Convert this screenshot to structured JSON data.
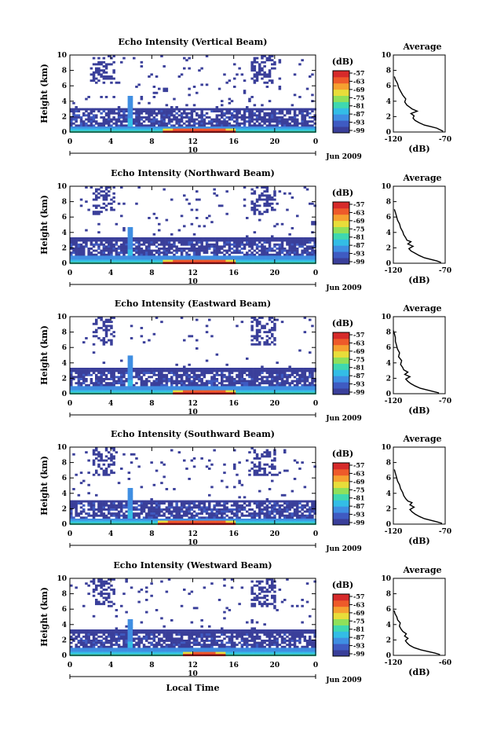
{
  "colors": {
    "cmap": [
      "#3a3f9a",
      "#3f5bc2",
      "#3f8ee2",
      "#33bde6",
      "#3fd8b0",
      "#8fe05a",
      "#e8dd3a",
      "#f6a030",
      "#ee5a2a",
      "#d62a2a"
    ]
  },
  "x_label": "Local Time",
  "chart_data": [
    {
      "type": "heatmap",
      "title": "Echo Intensity (Vertical Beam)",
      "ylabel": "Height (km)",
      "colorbar_label": "(dB)",
      "colorbar_ticks": [
        "-57",
        "-63",
        "-69",
        "-75",
        "-81",
        "-87",
        "-93",
        "-99"
      ],
      "x_ticks": [
        "0",
        "4",
        "8",
        "12",
        "16",
        "20",
        "0"
      ],
      "date_label": "10",
      "date_suffix": "Jun 2009",
      "xlim": [
        0,
        24
      ],
      "ylim": [
        0,
        10
      ],
      "y_ticks": [
        "0",
        "2",
        "4",
        "6",
        "8",
        "10"
      ],
      "clim": [
        -99,
        -57
      ],
      "layers": {
        "floor": 0.9,
        "mid_top": 3.3,
        "noise_density": 0.25,
        "spike_height": 4.8,
        "hot_max": 0.55,
        "hot_start": 9,
        "hot_end": 16
      },
      "average": {
        "title": "Average",
        "xlabel": "(dB)",
        "x_ticks": [
          "-120",
          "-70"
        ],
        "xlim": [
          -120,
          -70
        ],
        "y_ticks": [
          "0",
          "2",
          "4",
          "6",
          "8",
          "10"
        ],
        "height": [
          0.1,
          0.3,
          0.5,
          0.7,
          0.9,
          1.2,
          1.5,
          1.8,
          2.1,
          2.4,
          2.7,
          3.0,
          3.2,
          3.5,
          3.9,
          4.3,
          4.8,
          5.3,
          5.8,
          6.3,
          6.8,
          7.2
        ],
        "values": [
          -72,
          -75,
          -78,
          -84,
          -90,
          -95,
          -99,
          -101,
          -100,
          -103,
          -97,
          -102,
          -104,
          -107,
          -109,
          -108,
          -111,
          -113,
          -115,
          -116,
          -118,
          -119
        ]
      }
    },
    {
      "type": "heatmap",
      "title": "Echo Intensity (Northward Beam)",
      "ylabel": "Height (km)",
      "colorbar_label": "(dB)",
      "colorbar_ticks": [
        "-57",
        "-63",
        "-69",
        "-75",
        "-81",
        "-87",
        "-93",
        "-99"
      ],
      "x_ticks": [
        "0",
        "4",
        "8",
        "12",
        "16",
        "20",
        "0"
      ],
      "date_label": "10",
      "date_suffix": "Jun 2009",
      "xlim": [
        0,
        24
      ],
      "ylim": [
        0,
        10
      ],
      "y_ticks": [
        "0",
        "2",
        "4",
        "6",
        "8",
        "10"
      ],
      "clim": [
        -99,
        -57
      ],
      "layers": {
        "floor": 1.0,
        "mid_top": 3.4,
        "noise_density": 0.22,
        "spike_height": 4.9,
        "hot_max": 0.6,
        "hot_start": 9,
        "hot_end": 16
      },
      "average": {
        "title": "Average",
        "xlabel": "(dB)",
        "x_ticks": [
          "-120",
          "-70"
        ],
        "xlim": [
          -120,
          -70
        ],
        "y_ticks": [
          "0",
          "2",
          "4",
          "6",
          "8",
          "10"
        ],
        "height": [
          0.1,
          0.3,
          0.5,
          0.7,
          1.0,
          1.3,
          1.6,
          1.9,
          2.2,
          2.5,
          2.8,
          3.0,
          3.3,
          3.7,
          4.1,
          4.6,
          5.1,
          5.6,
          6.1,
          6.6,
          7.0
        ],
        "values": [
          -74,
          -78,
          -84,
          -90,
          -95,
          -99,
          -103,
          -105,
          -101,
          -106,
          -103,
          -107,
          -108,
          -110,
          -111,
          -113,
          -114,
          -116,
          -117,
          -118,
          -119
        ]
      }
    },
    {
      "type": "heatmap",
      "title": "Echo Intensity (Eastward Beam)",
      "ylabel": "Height (km)",
      "colorbar_label": "(dB)",
      "colorbar_ticks": [
        "-57",
        "-63",
        "-69",
        "-75",
        "-81",
        "-87",
        "-93",
        "-99"
      ],
      "x_ticks": [
        "0",
        "4",
        "8",
        "12",
        "16",
        "20",
        "0"
      ],
      "date_label": "10",
      "date_suffix": "Jun 2009",
      "xlim": [
        0,
        24
      ],
      "ylim": [
        0,
        10
      ],
      "y_ticks": [
        "0",
        "2",
        "4",
        "6",
        "8",
        "10"
      ],
      "clim": [
        -99,
        -57
      ],
      "layers": {
        "floor": 1.0,
        "mid_top": 3.5,
        "noise_density": 0.12,
        "spike_height": 5.0,
        "hot_max": 0.5,
        "hot_start": 10,
        "hot_end": 16
      },
      "average": {
        "title": "Average",
        "xlabel": "(dB)",
        "x_ticks": [
          "-120",
          "-70"
        ],
        "xlim": [
          -120,
          -70
        ],
        "y_ticks": [
          "0",
          "2",
          "4",
          "6",
          "8",
          "10"
        ],
        "height": [
          0.1,
          0.3,
          0.5,
          0.7,
          1.0,
          1.3,
          1.6,
          1.9,
          2.2,
          2.5,
          2.8,
          3.1,
          3.4,
          3.8,
          4.3,
          4.8,
          5.3,
          5.8,
          6.3,
          6.8,
          7.3,
          7.8,
          8.2
        ],
        "values": [
          -76,
          -82,
          -88,
          -94,
          -99,
          -103,
          -106,
          -108,
          -104,
          -109,
          -106,
          -110,
          -111,
          -113,
          -112,
          -115,
          -114,
          -116,
          -117,
          -118,
          -118,
          -119,
          -120
        ]
      }
    },
    {
      "type": "heatmap",
      "title": "Echo Intensity (Southward Beam)",
      "ylabel": "Height (km)",
      "colorbar_label": "(dB)",
      "colorbar_ticks": [
        "-57",
        "-63",
        "-69",
        "-75",
        "-81",
        "-87",
        "-93",
        "-99"
      ],
      "x_ticks": [
        "0",
        "4",
        "8",
        "12",
        "16",
        "20",
        "0"
      ],
      "date_label": "10",
      "date_suffix": "Jun 2009",
      "xlim": [
        0,
        24
      ],
      "ylim": [
        0,
        10
      ],
      "y_ticks": [
        "0",
        "2",
        "4",
        "6",
        "8",
        "10"
      ],
      "clim": [
        -99,
        -57
      ],
      "layers": {
        "floor": 0.9,
        "mid_top": 3.3,
        "noise_density": 0.2,
        "spike_height": 4.7,
        "hot_max": 0.6,
        "hot_start": 8.5,
        "hot_end": 16
      },
      "average": {
        "title": "Average",
        "xlabel": "(dB)",
        "x_ticks": [
          "-120",
          "-70"
        ],
        "xlim": [
          -120,
          -70
        ],
        "y_ticks": [
          "0",
          "2",
          "4",
          "6",
          "8",
          "10"
        ],
        "height": [
          0.1,
          0.3,
          0.5,
          0.7,
          1.0,
          1.3,
          1.6,
          1.9,
          2.2,
          2.5,
          2.8,
          3.0,
          3.3,
          3.7,
          4.1,
          4.6,
          5.1,
          5.6,
          6.1,
          6.6,
          7.1
        ],
        "values": [
          -73,
          -78,
          -84,
          -90,
          -95,
          -99,
          -102,
          -104,
          -100,
          -104,
          -102,
          -106,
          -108,
          -110,
          -111,
          -113,
          -114,
          -116,
          -117,
          -118,
          -119
        ]
      }
    },
    {
      "type": "heatmap",
      "title": "Echo Intensity (Westward Beam)",
      "ylabel": "Height (km)",
      "colorbar_label": "(dB)",
      "colorbar_ticks": [
        "-57",
        "-63",
        "-69",
        "-75",
        "-81",
        "-87",
        "-93",
        "-99"
      ],
      "x_ticks": [
        "0",
        "4",
        "8",
        "12",
        "16",
        "20",
        "0"
      ],
      "date_label": "10",
      "date_suffix": "Jun 2009",
      "xlim": [
        0,
        24
      ],
      "ylim": [
        0,
        10
      ],
      "y_ticks": [
        "0",
        "2",
        "4",
        "6",
        "8",
        "10"
      ],
      "clim": [
        -99,
        -57
      ],
      "layers": {
        "floor": 1.0,
        "mid_top": 3.5,
        "noise_density": 0.2,
        "spike_height": 4.8,
        "hot_max": 0.45,
        "hot_start": 11,
        "hot_end": 15
      },
      "average": {
        "title": "Average",
        "xlabel": "(dB)",
        "x_ticks": [
          "-120",
          "-60"
        ],
        "xlim": [
          -120,
          -60
        ],
        "y_ticks": [
          "0",
          "2",
          "4",
          "6",
          "8",
          "10"
        ],
        "height": [
          0.1,
          0.3,
          0.5,
          0.7,
          1.0,
          1.3,
          1.6,
          1.9,
          2.2,
          2.5,
          2.8,
          3.1,
          3.4,
          3.8,
          4.2,
          4.6,
          5.0,
          5.4,
          5.8
        ],
        "values": [
          -66,
          -72,
          -80,
          -88,
          -96,
          -101,
          -104,
          -106,
          -103,
          -107,
          -105,
          -109,
          -111,
          -113,
          -112,
          -115,
          -116,
          -118,
          -119
        ]
      }
    }
  ]
}
